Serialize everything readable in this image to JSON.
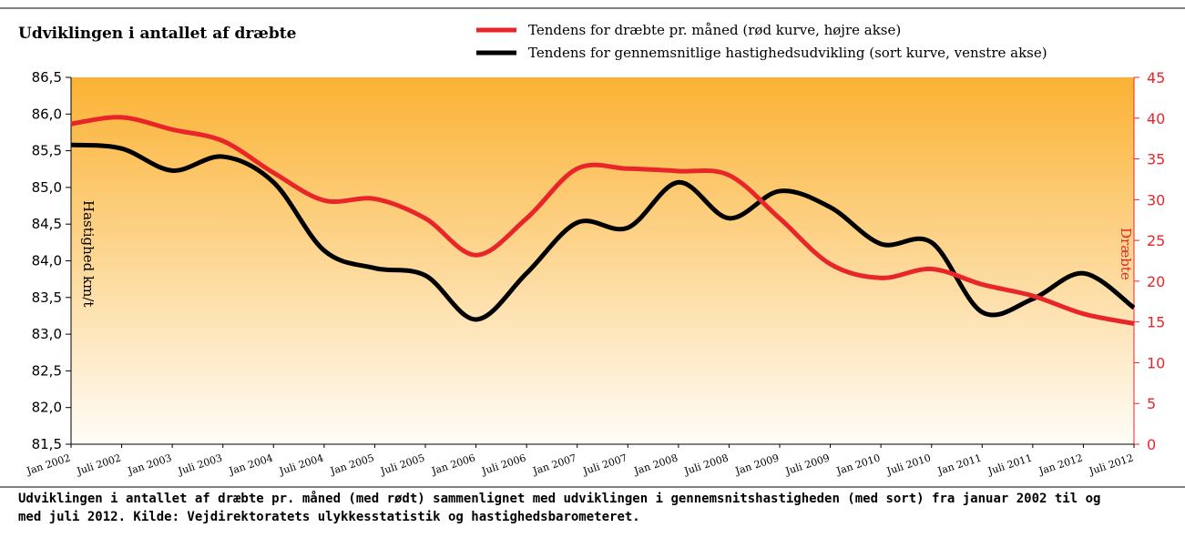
{
  "chart_data": {
    "type": "line",
    "title": "Udviklingen i antallet af dræbte",
    "caption": "Udviklingen i antallet af dræbte pr. måned (med rødt) sammenlignet med udviklingen i gennemsnitshastigheden (med sort) fra januar 2002 til og med juli 2012. Kilde: Vejdirektoratets ulykkesstatistik og hastighedsbarometeret.",
    "y_label": "Hastighed km/t",
    "y2_label": "Dræbte",
    "legend": "top",
    "categories": [
      "Jan 2002",
      "Juli 2002",
      "Jan 2003",
      "Juli 2003",
      "Jan 2004",
      "Juli 2004",
      "Jan 2005",
      "Juli 2005",
      "Jan 2006",
      "Juli 2006",
      "Jan 2007",
      "Juli 2007",
      "Jan 2008",
      "Juli 2008",
      "Jan 2009",
      "Juli 2009",
      "Jan 2010",
      "Juli 2010",
      "Jan 2011",
      "Juli 2011",
      "Jan 2012",
      "Juli 2012"
    ],
    "series": [
      {
        "name": "Tendens for dræbte pr. måned (rød kurve, højre akse)",
        "color": "#e8262a",
        "axis": "y2",
        "values": [
          39.3,
          40.1,
          38.6,
          37.2,
          33.3,
          29.9,
          30.1,
          27.7,
          23.2,
          27.7,
          33.8,
          33.8,
          33.5,
          33.0,
          27.7,
          22.1,
          20.4,
          21.5,
          19.6,
          18.2,
          16,
          14.8
        ]
      },
      {
        "name": "Tendens for gennemsnitlige hastighedsudvikling (sort kurve, venstre akse)",
        "color": "#000000",
        "values": [
          85.58,
          85.53,
          85.23,
          85.42,
          85.07,
          84.14,
          83.9,
          83.8,
          83.2,
          83.83,
          84.52,
          84.45,
          85.07,
          84.58,
          84.95,
          84.73,
          84.23,
          84.25,
          83.3,
          83.48,
          83.83,
          83.36
        ]
      }
    ],
    "ylim": [
      81.5,
      86.5
    ],
    "yticks": [
      {
        "value": 81.5,
        "label": "81,5"
      },
      {
        "value": 82,
        "label": "82,0"
      },
      {
        "value": 82.5,
        "label": "82,5"
      },
      {
        "value": 83,
        "label": "83,0"
      },
      {
        "value": 83.5,
        "label": "83,5"
      },
      {
        "value": 84,
        "label": "84,0"
      },
      {
        "value": 84.5,
        "label": "84,5"
      },
      {
        "value": 85,
        "label": "85,0"
      },
      {
        "value": 85.5,
        "label": "85,5"
      },
      {
        "value": 86,
        "label": "86,0"
      },
      {
        "value": 86.5,
        "label": "86,5"
      }
    ],
    "y2lim": [
      0,
      45
    ],
    "y2ticks": [
      0,
      5,
      10,
      15,
      20,
      25,
      30,
      35,
      40,
      45
    ]
  }
}
